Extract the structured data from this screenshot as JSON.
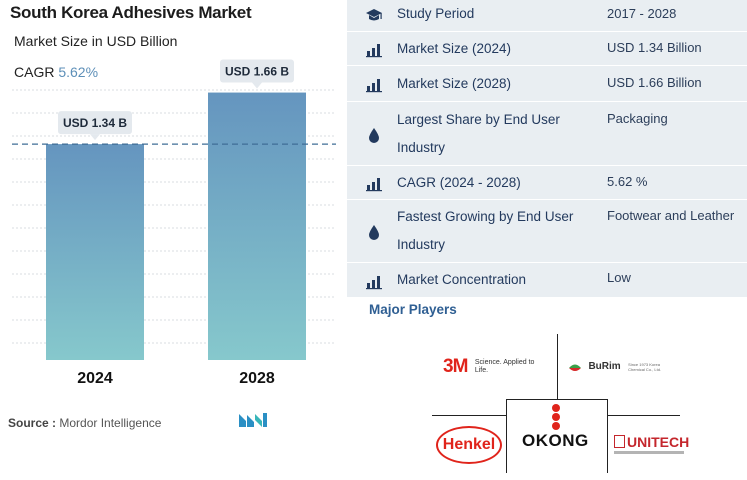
{
  "header": {
    "title": "South Korea Adhesives Market",
    "subtitle": "Market Size in USD Billion",
    "cagr_label": "CAGR",
    "cagr_value": "5.62%"
  },
  "chart_data": {
    "type": "bar",
    "categories": [
      "2024",
      "2028"
    ],
    "values": [
      1.34,
      1.66
    ],
    "data_labels": [
      "USD 1.34 B",
      "USD 1.66 B"
    ],
    "ylim": [
      0,
      1.8
    ],
    "grid": true,
    "reference_line": 1.34,
    "colors": {
      "bar_top": "#6595bf",
      "bar_bottom": "#86c8cc",
      "ref_line": "#3f6d96"
    }
  },
  "source": {
    "label": "Source :",
    "text": "Mordor Intelligence"
  },
  "info_table": [
    {
      "icon": "graduation-cap-icon",
      "label": "Study Period",
      "value": "2017 - 2028"
    },
    {
      "icon": "bar-chart-icon",
      "label": "Market Size (2024)",
      "value": "USD 1.34 Billion"
    },
    {
      "icon": "bar-chart-icon",
      "label": "Market Size (2028)",
      "value": "USD 1.66 Billion"
    },
    {
      "icon": "drop-icon",
      "label": "Largest Share by End User Industry",
      "value": "Packaging"
    },
    {
      "icon": "bar-chart-icon",
      "label": "CAGR (2024 - 2028)",
      "value": "5.62 %"
    },
    {
      "icon": "drop-icon",
      "label": "Fastest Growing by End User Industry",
      "value": "Footwear and Leather"
    },
    {
      "icon": "bar-chart-icon",
      "label": "Market Concentration",
      "value": "Low"
    }
  ],
  "players": {
    "title": "Major Players",
    "logos": {
      "threem": {
        "mark": "3M",
        "tagline": "Science. Applied to Life."
      },
      "burim": {
        "mark": "BuRim",
        "sub": "Since 1973 Korea Chemical Co., Ltd."
      },
      "henkel": {
        "mark": "Henkel"
      },
      "okong": {
        "mark": "OKONG"
      },
      "unitech": {
        "mark": "UNITECH"
      }
    }
  },
  "colors": {
    "table_bg": "#e9eef2",
    "label_text": "#233a5e",
    "accent": "#2f5f93",
    "brand_red": "#e0241b"
  }
}
